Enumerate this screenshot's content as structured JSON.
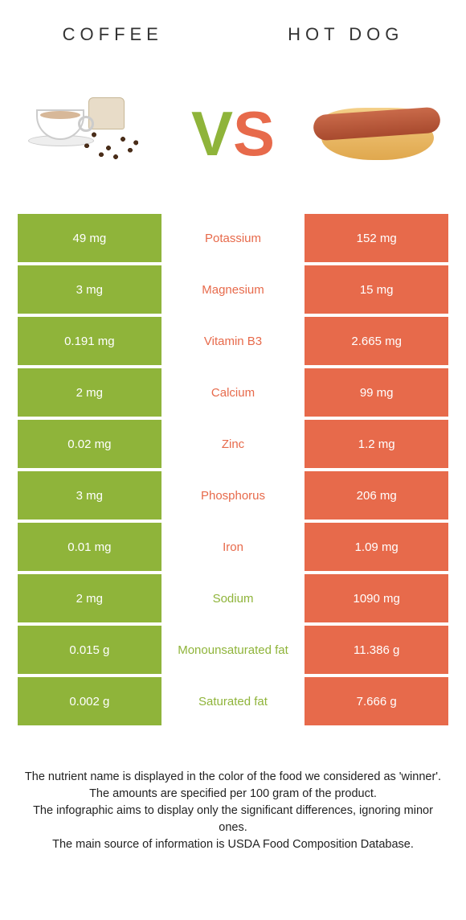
{
  "header": {
    "left_title": "COFFEE",
    "right_title": "HOT DOG"
  },
  "vs": {
    "v": "V",
    "s": "S"
  },
  "colors": {
    "left": "#8fb43a",
    "right": "#e76a4b",
    "text_dark": "#333333",
    "white": "#ffffff"
  },
  "rows": [
    {
      "left": "49 mg",
      "label": "Potassium",
      "right": "152 mg",
      "winner": "right"
    },
    {
      "left": "3 mg",
      "label": "Magnesium",
      "right": "15 mg",
      "winner": "right"
    },
    {
      "left": "0.191 mg",
      "label": "Vitamin B3",
      "right": "2.665 mg",
      "winner": "right"
    },
    {
      "left": "2 mg",
      "label": "Calcium",
      "right": "99 mg",
      "winner": "right"
    },
    {
      "left": "0.02 mg",
      "label": "Zinc",
      "right": "1.2 mg",
      "winner": "right"
    },
    {
      "left": "3 mg",
      "label": "Phosphorus",
      "right": "206 mg",
      "winner": "right"
    },
    {
      "left": "0.01 mg",
      "label": "Iron",
      "right": "1.09 mg",
      "winner": "right"
    },
    {
      "left": "2 mg",
      "label": "Sodium",
      "right": "1090 mg",
      "winner": "left"
    },
    {
      "left": "0.015 g",
      "label": "Monounsaturated fat",
      "right": "11.386 g",
      "winner": "left"
    },
    {
      "left": "0.002 g",
      "label": "Saturated fat",
      "right": "7.666 g",
      "winner": "left"
    }
  ],
  "footnote": {
    "line1": "The nutrient name is displayed in the color of the food we considered as 'winner'.",
    "line2": "The amounts are specified per 100 gram of the product.",
    "line3": "The infographic aims to display only the significant differences, ignoring minor ones.",
    "line4": "The main source of information is USDA Food Composition Database."
  }
}
